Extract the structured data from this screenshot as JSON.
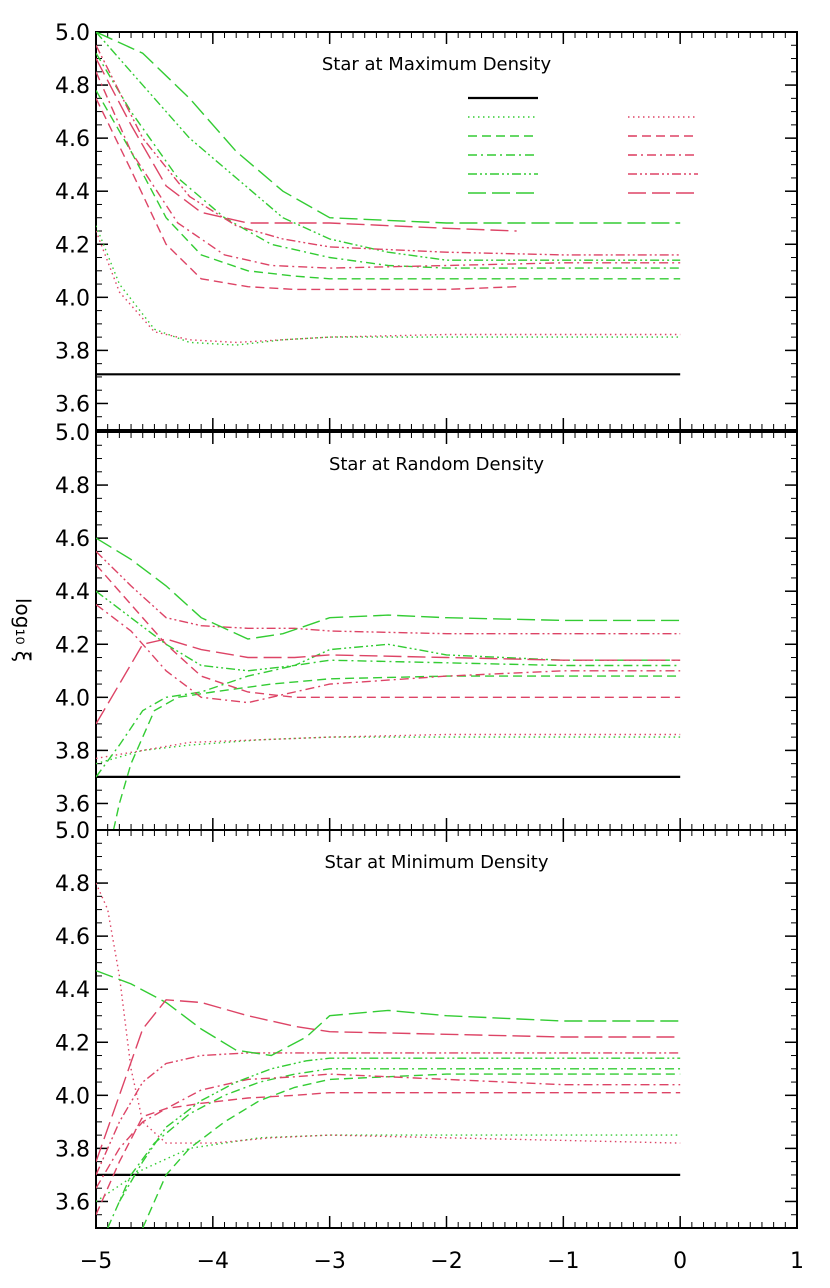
{
  "chart_data": [
    {
      "type": "line",
      "title": "Star at Maximum Density",
      "ylabel": "log₁₀ ξ",
      "xlabel": "",
      "xlim": [
        -5,
        1
      ],
      "ylim": [
        3.5,
        5.0
      ],
      "xticks": [
        "−5",
        "−4",
        "−3",
        "−2",
        "−1",
        "0",
        "1"
      ],
      "yticks": [
        "5.0",
        "4.8",
        "4.6",
        "4.4",
        "4.2",
        "4.0",
        "3.8",
        "3.6"
      ],
      "legend": {
        "position": "top-right",
        "entries": [
          {
            "label": "",
            "color": "#000000",
            "style": "solid"
          },
          {
            "label": "",
            "color": "#33cc33",
            "style": "dotted"
          },
          {
            "label": "",
            "color": "#33cc33",
            "style": "dashed"
          },
          {
            "label": "",
            "color": "#33cc33",
            "style": "dashdot"
          },
          {
            "label": "",
            "color": "#33cc33",
            "style": "dashdotdot"
          },
          {
            "label": "",
            "color": "#33cc33",
            "style": "longdash"
          },
          {
            "label": "",
            "color": "#dd4466",
            "style": "dotted"
          },
          {
            "label": "",
            "color": "#dd4466",
            "style": "dashed"
          },
          {
            "label": "",
            "color": "#dd4466",
            "style": "dashdot"
          },
          {
            "label": "",
            "color": "#dd4466",
            "style": "dashdotdot"
          },
          {
            "label": "",
            "color": "#dd4466",
            "style": "longdash"
          }
        ]
      },
      "series": [
        {
          "color": "#000000",
          "style": "solid",
          "x": [
            -5,
            0
          ],
          "y": [
            3.71,
            3.71
          ]
        },
        {
          "color": "#33cc33",
          "style": "dotted",
          "x": [
            -5,
            -4.8,
            -4.5,
            -4.2,
            -3.8,
            -3.4,
            -3,
            -2,
            -1,
            0
          ],
          "y": [
            4.27,
            4.05,
            3.88,
            3.83,
            3.82,
            3.84,
            3.85,
            3.85,
            3.85,
            3.85
          ]
        },
        {
          "color": "#dd4466",
          "style": "dotted",
          "x": [
            -5,
            -4.8,
            -4.5,
            -4.2,
            -3.8,
            -3,
            -2,
            -1,
            0
          ],
          "y": [
            4.25,
            4.02,
            3.87,
            3.84,
            3.83,
            3.85,
            3.86,
            3.86,
            3.86
          ]
        },
        {
          "color": "#33cc33",
          "style": "dashed",
          "x": [
            -5,
            -4.7,
            -4.4,
            -4.1,
            -3.7,
            -3.3,
            -3,
            -2,
            -1,
            0
          ],
          "y": [
            4.78,
            4.55,
            4.3,
            4.16,
            4.1,
            4.08,
            4.07,
            4.07,
            4.07,
            4.07
          ]
        },
        {
          "color": "#dd4466",
          "style": "dashed",
          "x": [
            -5,
            -4.7,
            -4.4,
            -4.1,
            -3.7,
            -3.3,
            -3,
            -2,
            -1.4
          ],
          "y": [
            4.75,
            4.48,
            4.2,
            4.07,
            4.04,
            4.03,
            4.03,
            4.03,
            4.04
          ]
        },
        {
          "color": "#33cc33",
          "style": "dashdot",
          "x": [
            -5,
            -4.7,
            -4.3,
            -3.9,
            -3.5,
            -3,
            -2.5,
            -2,
            -1,
            0
          ],
          "y": [
            4.92,
            4.7,
            4.45,
            4.3,
            4.2,
            4.15,
            4.12,
            4.11,
            4.11,
            4.11
          ]
        },
        {
          "color": "#dd4466",
          "style": "dashdot",
          "x": [
            -5,
            -4.7,
            -4.3,
            -3.9,
            -3.5,
            -3,
            -2,
            -1,
            0
          ],
          "y": [
            4.85,
            4.55,
            4.28,
            4.16,
            4.12,
            4.11,
            4.12,
            4.13,
            4.13
          ]
        },
        {
          "color": "#33cc33",
          "style": "dashdotdot",
          "x": [
            -5,
            -4.6,
            -4.2,
            -3.8,
            -3.4,
            -3,
            -2.5,
            -2,
            -1,
            0
          ],
          "y": [
            5.0,
            4.8,
            4.6,
            4.45,
            4.3,
            4.22,
            4.17,
            4.14,
            4.14,
            4.14
          ]
        },
        {
          "color": "#dd4466",
          "style": "dashdotdot",
          "x": [
            -5,
            -4.6,
            -4.2,
            -3.8,
            -3.4,
            -3,
            -2,
            -1,
            0
          ],
          "y": [
            4.95,
            4.6,
            4.38,
            4.27,
            4.22,
            4.19,
            4.17,
            4.16,
            4.16
          ]
        },
        {
          "color": "#33cc33",
          "style": "longdash",
          "x": [
            -5,
            -4.6,
            -4.2,
            -3.8,
            -3.4,
            -3,
            -2.5,
            -2,
            -1,
            0
          ],
          "y": [
            5.0,
            4.92,
            4.75,
            4.55,
            4.4,
            4.3,
            4.29,
            4.28,
            4.28,
            4.28
          ]
        },
        {
          "color": "#dd4466",
          "style": "longdash",
          "x": [
            -5,
            -4.7,
            -4.4,
            -4.1,
            -3.7,
            -3.3,
            -3,
            -2,
            -1.4
          ],
          "y": [
            4.9,
            4.65,
            4.42,
            4.32,
            4.28,
            4.28,
            4.28,
            4.26,
            4.25
          ]
        }
      ]
    },
    {
      "type": "line",
      "title": "Star at Random Density",
      "ylabel": "log₁₀ ξ",
      "xlabel": "",
      "xlim": [
        -5,
        1
      ],
      "ylim": [
        3.5,
        5.0
      ],
      "xticks": [
        "−5",
        "−4",
        "−3",
        "−2",
        "−1",
        "0",
        "1"
      ],
      "yticks": [
        "5.0",
        "4.8",
        "4.6",
        "4.4",
        "4.2",
        "4.0",
        "3.8",
        "3.6"
      ],
      "series": [
        {
          "color": "#000000",
          "style": "solid",
          "x": [
            -5,
            0
          ],
          "y": [
            3.7,
            3.7
          ]
        },
        {
          "color": "#33cc33",
          "style": "dotted",
          "x": [
            -5,
            -4.6,
            -4.2,
            -3.6,
            -3,
            -2,
            -1,
            0
          ],
          "y": [
            3.75,
            3.8,
            3.82,
            3.84,
            3.85,
            3.85,
            3.85,
            3.85
          ]
        },
        {
          "color": "#dd4466",
          "style": "dotted",
          "x": [
            -5,
            -4.6,
            -4.2,
            -3.6,
            -3,
            -2,
            -1,
            0
          ],
          "y": [
            3.77,
            3.8,
            3.83,
            3.84,
            3.85,
            3.86,
            3.86,
            3.86
          ]
        },
        {
          "color": "#33cc33",
          "style": "dashed",
          "x": [
            -4.85,
            -4.8,
            -4.7,
            -4.6,
            -4.5,
            -4.3,
            -4,
            -3.5,
            -3,
            -2,
            -1,
            0
          ],
          "y": [
            3.5,
            3.6,
            3.75,
            3.85,
            3.95,
            4.0,
            4.02,
            4.05,
            4.07,
            4.08,
            4.08,
            4.08
          ]
        },
        {
          "color": "#dd4466",
          "style": "dashed",
          "x": [
            -5,
            -4.7,
            -4.4,
            -4.1,
            -3.7,
            -3.3,
            -3,
            -2,
            -1,
            0
          ],
          "y": [
            4.5,
            4.35,
            4.2,
            4.08,
            4.02,
            4.0,
            4.0,
            4.0,
            4.0,
            4.0
          ]
        },
        {
          "color": "#33cc33",
          "style": "dashdot",
          "x": [
            -5,
            -4.8,
            -4.6,
            -4.4,
            -4.1,
            -3.7,
            -3.3,
            -3,
            -2,
            -1,
            0
          ],
          "y": [
            3.7,
            3.82,
            3.95,
            4.0,
            4.02,
            4.08,
            4.12,
            4.14,
            4.13,
            4.12,
            4.12
          ]
        },
        {
          "color": "#dd4466",
          "style": "dashdot",
          "x": [
            -5,
            -4.7,
            -4.4,
            -4.1,
            -3.7,
            -3.3,
            -3,
            -2,
            -1,
            0
          ],
          "y": [
            4.35,
            4.25,
            4.1,
            4.0,
            3.98,
            4.02,
            4.05,
            4.08,
            4.1,
            4.1
          ]
        },
        {
          "color": "#33cc33",
          "style": "dashdotdot",
          "x": [
            -5,
            -4.7,
            -4.4,
            -4.1,
            -3.7,
            -3.3,
            -3,
            -2.5,
            -2,
            -1,
            0
          ],
          "y": [
            4.4,
            4.3,
            4.2,
            4.12,
            4.1,
            4.12,
            4.18,
            4.2,
            4.16,
            4.14,
            4.14
          ]
        },
        {
          "color": "#dd4466",
          "style": "dashdotdot",
          "x": [
            -5,
            -4.7,
            -4.4,
            -4.1,
            -3.7,
            -3.3,
            -3,
            -2,
            -1,
            0
          ],
          "y": [
            4.55,
            4.42,
            4.3,
            4.27,
            4.26,
            4.26,
            4.25,
            4.24,
            4.24,
            4.24
          ]
        },
        {
          "color": "#33cc33",
          "style": "longdash",
          "x": [
            -5,
            -4.7,
            -4.4,
            -4.1,
            -3.7,
            -3.4,
            -3,
            -2.5,
            -2,
            -1,
            0
          ],
          "y": [
            4.6,
            4.52,
            4.42,
            4.3,
            4.22,
            4.24,
            4.3,
            4.31,
            4.3,
            4.29,
            4.29
          ]
        },
        {
          "color": "#dd4466",
          "style": "longdash",
          "x": [
            -5,
            -4.8,
            -4.6,
            -4.4,
            -4.1,
            -3.7,
            -3.3,
            -3,
            -2,
            -1,
            0
          ],
          "y": [
            3.9,
            4.05,
            4.2,
            4.22,
            4.18,
            4.15,
            4.15,
            4.16,
            4.15,
            4.14,
            4.14
          ]
        }
      ]
    },
    {
      "type": "line",
      "title": "Star at Minimum Density",
      "ylabel": "log₁₀ ξ",
      "xlabel": "",
      "xlim": [
        -5,
        1
      ],
      "ylim": [
        3.5,
        5.0
      ],
      "xticks": [
        "−5",
        "−4",
        "−3",
        "−2",
        "−1",
        "0",
        "1"
      ],
      "yticks": [
        "5.0",
        "4.8",
        "4.6",
        "4.4",
        "4.2",
        "4.0",
        "3.8",
        "3.6"
      ],
      "series": [
        {
          "color": "#000000",
          "style": "solid",
          "x": [
            -5,
            0
          ],
          "y": [
            3.7,
            3.7
          ]
        },
        {
          "color": "#33cc33",
          "style": "dotted",
          "x": [
            -5,
            -4.6,
            -4.2,
            -3.6,
            -3,
            -2,
            -1,
            0
          ],
          "y": [
            3.6,
            3.72,
            3.8,
            3.84,
            3.85,
            3.85,
            3.85,
            3.85
          ]
        },
        {
          "color": "#dd4466",
          "style": "dotted",
          "x": [
            -5,
            -4.9,
            -4.8,
            -4.7,
            -4.6,
            -4.4,
            -4,
            -3.5,
            -3,
            -2,
            -1,
            0
          ],
          "y": [
            4.8,
            4.7,
            4.45,
            4.1,
            3.9,
            3.82,
            3.82,
            3.84,
            3.85,
            3.84,
            3.83,
            3.82
          ]
        },
        {
          "color": "#33cc33",
          "style": "dashed",
          "x": [
            -4.6,
            -4.5,
            -4.4,
            -4.2,
            -3.9,
            -3.6,
            -3.3,
            -3,
            -2,
            -1,
            0
          ],
          "y": [
            3.5,
            3.6,
            3.7,
            3.8,
            3.9,
            3.98,
            4.03,
            4.06,
            4.08,
            4.08,
            4.08
          ]
        },
        {
          "color": "#dd4466",
          "style": "dashed",
          "x": [
            -5,
            -4.8,
            -4.6,
            -4.4,
            -4.1,
            -3.7,
            -3.3,
            -3,
            -2,
            -1,
            0
          ],
          "y": [
            3.55,
            3.75,
            3.92,
            3.95,
            3.97,
            3.99,
            4.0,
            4.01,
            4.01,
            4.01,
            4.01
          ]
        },
        {
          "color": "#33cc33",
          "style": "dashdot",
          "x": [
            -4.9,
            -4.8,
            -4.7,
            -4.5,
            -4.2,
            -3.9,
            -3.6,
            -3.3,
            -3,
            -2,
            -1,
            0
          ],
          "y": [
            3.5,
            3.6,
            3.7,
            3.82,
            3.93,
            4.0,
            4.05,
            4.08,
            4.1,
            4.1,
            4.1,
            4.1
          ]
        },
        {
          "color": "#dd4466",
          "style": "dashdot",
          "x": [
            -5,
            -4.8,
            -4.6,
            -4.4,
            -4.1,
            -3.7,
            -3.3,
            -3,
            -2,
            -1,
            0
          ],
          "y": [
            3.65,
            3.8,
            3.9,
            3.95,
            4.02,
            4.06,
            4.07,
            4.08,
            4.06,
            4.04,
            4.04
          ]
        },
        {
          "color": "#33cc33",
          "style": "dashdotdot",
          "x": [
            -4.8,
            -4.6,
            -4.4,
            -4.1,
            -3.8,
            -3.5,
            -3.2,
            -3,
            -2,
            -1,
            0
          ],
          "y": [
            3.6,
            3.75,
            3.88,
            3.98,
            4.05,
            4.1,
            4.13,
            4.14,
            4.14,
            4.14,
            4.14
          ]
        },
        {
          "color": "#dd4466",
          "style": "dashdotdot",
          "x": [
            -5,
            -4.8,
            -4.6,
            -4.4,
            -4.1,
            -3.7,
            -3.3,
            -3,
            -2,
            -1,
            0
          ],
          "y": [
            3.7,
            3.9,
            4.05,
            4.12,
            4.15,
            4.16,
            4.16,
            4.16,
            4.16,
            4.16,
            4.16
          ]
        },
        {
          "color": "#33cc33",
          "style": "longdash",
          "x": [
            -5,
            -4.7,
            -4.4,
            -4.1,
            -3.8,
            -3.5,
            -3.2,
            -3,
            -2.5,
            -2,
            -1,
            0
          ],
          "y": [
            4.47,
            4.42,
            4.35,
            4.25,
            4.17,
            4.15,
            4.22,
            4.3,
            4.32,
            4.3,
            4.28,
            4.28
          ]
        },
        {
          "color": "#dd4466",
          "style": "longdash",
          "x": [
            -5,
            -4.8,
            -4.6,
            -4.4,
            -4.1,
            -3.7,
            -3.3,
            -3,
            -2,
            -1,
            0
          ],
          "y": [
            3.75,
            4.0,
            4.25,
            4.36,
            4.35,
            4.3,
            4.26,
            4.24,
            4.23,
            4.22,
            4.22
          ]
        }
      ]
    }
  ]
}
